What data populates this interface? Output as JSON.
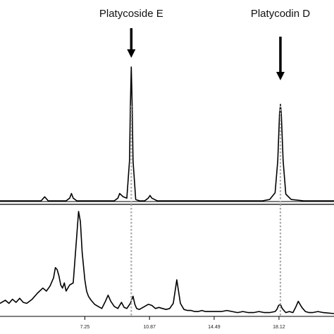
{
  "chart_data": {
    "type": "line",
    "title": "",
    "xlabel": "",
    "ylabel": "",
    "xlim": [
      2.5,
      21.2
    ],
    "x_ticks": [
      "7.25",
      "10.87",
      "14.49",
      "18.12"
    ],
    "x_tick_values": [
      7.25,
      10.87,
      14.49,
      18.12
    ],
    "annotations": [
      {
        "text": "Platycoside E",
        "x": 9.85
      },
      {
        "text": "Platycodin D",
        "x": 18.2
      }
    ],
    "grid": false,
    "series": [
      {
        "name": "",
        "panel": "top",
        "ylim": [
          0,
          1
        ],
        "x": [
          2.5,
          4.0,
          4.8,
          5.0,
          5.2,
          6.2,
          6.4,
          6.5,
          6.6,
          6.8,
          7.2,
          8.0,
          8.9,
          9.1,
          9.2,
          9.4,
          9.6,
          9.75,
          9.8,
          9.85,
          9.9,
          9.95,
          10.1,
          10.3,
          10.6,
          10.8,
          10.9,
          11.0,
          11.3,
          12.5,
          14.0,
          16.0,
          17.2,
          17.6,
          17.9,
          18.05,
          18.15,
          18.2,
          18.25,
          18.35,
          18.5,
          18.8,
          19.5,
          21.2
        ],
        "values": [
          0.0,
          0.0,
          0.0,
          0.03,
          0.0,
          0.0,
          0.02,
          0.055,
          0.02,
          0.0,
          0.0,
          0.0,
          0.0,
          0.02,
          0.055,
          0.03,
          0.02,
          0.3,
          0.7,
          1.0,
          0.7,
          0.3,
          0.01,
          0.0,
          0.0,
          0.02,
          0.04,
          0.02,
          0.0,
          0.0,
          0.0,
          0.0,
          0.0,
          0.01,
          0.06,
          0.3,
          0.65,
          0.72,
          0.65,
          0.3,
          0.05,
          0.01,
          0.0,
          0.0
        ]
      },
      {
        "name": "",
        "panel": "bottom",
        "ylim": [
          0,
          1
        ],
        "x": [
          2.5,
          2.8,
          3.0,
          3.2,
          3.4,
          3.6,
          3.8,
          4.0,
          4.3,
          4.6,
          4.9,
          5.1,
          5.3,
          5.5,
          5.6,
          5.7,
          5.8,
          5.9,
          6.0,
          6.1,
          6.2,
          6.4,
          6.6,
          6.75,
          6.9,
          7.0,
          7.1,
          7.25,
          7.35,
          7.45,
          7.6,
          7.8,
          8.0,
          8.2,
          8.4,
          8.55,
          8.7,
          8.9,
          9.1,
          9.2,
          9.3,
          9.45,
          9.6,
          9.8,
          9.95,
          10.05,
          10.15,
          10.3,
          10.5,
          10.8,
          11.0,
          11.2,
          11.4,
          11.6,
          11.8,
          12.0,
          12.2,
          12.4,
          12.6,
          12.8,
          13.0,
          13.2,
          13.4,
          13.6,
          13.8,
          14.0,
          14.3,
          14.6,
          14.9,
          15.2,
          15.5,
          15.8,
          16.1,
          16.4,
          16.7,
          17.0,
          17.3,
          17.6,
          17.9,
          18.0,
          18.1,
          18.2,
          18.3,
          18.5,
          18.7,
          18.9,
          19.05,
          19.2,
          19.4,
          19.6,
          19.8,
          20.0,
          20.3,
          20.6,
          21.2
        ],
        "values": [
          0.1,
          0.13,
          0.1,
          0.14,
          0.11,
          0.15,
          0.11,
          0.1,
          0.14,
          0.2,
          0.25,
          0.22,
          0.27,
          0.35,
          0.45,
          0.43,
          0.37,
          0.28,
          0.25,
          0.3,
          0.22,
          0.28,
          0.3,
          0.65,
          1.0,
          0.9,
          0.6,
          0.33,
          0.22,
          0.17,
          0.13,
          0.09,
          0.07,
          0.05,
          0.12,
          0.18,
          0.12,
          0.07,
          0.05,
          0.08,
          0.11,
          0.06,
          0.05,
          0.1,
          0.17,
          0.09,
          0.05,
          0.04,
          0.06,
          0.09,
          0.08,
          0.05,
          0.06,
          0.05,
          0.04,
          0.05,
          0.1,
          0.33,
          0.1,
          0.04,
          0.03,
          0.03,
          0.02,
          0.02,
          0.03,
          0.02,
          0.02,
          0.02,
          0.02,
          0.03,
          0.02,
          0.01,
          0.02,
          0.01,
          0.01,
          0.02,
          0.01,
          0.01,
          0.02,
          0.04,
          0.08,
          0.09,
          0.05,
          0.01,
          0.02,
          0.01,
          0.06,
          0.12,
          0.06,
          0.02,
          0.01,
          0.01,
          0.02,
          0.01,
          0.0
        ]
      }
    ]
  }
}
